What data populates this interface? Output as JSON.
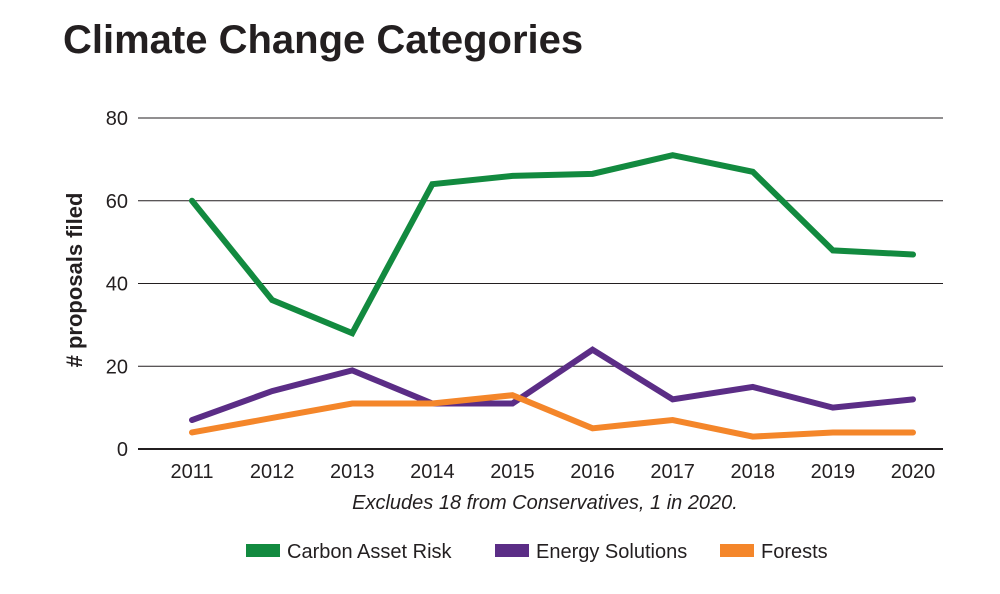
{
  "chart_data": {
    "type": "line",
    "title": "Climate Change Categories",
    "ylabel": "# proposals filed",
    "xlabel": "",
    "note": "Excludes 18 from Conservatives, 1 in 2020.",
    "x": [
      "2011",
      "2012",
      "2013",
      "2014",
      "2015",
      "2016",
      "2017",
      "2018",
      "2019",
      "2020"
    ],
    "ylim": [
      0,
      80
    ],
    "yticks": [
      0,
      20,
      40,
      60,
      80
    ],
    "grid": true,
    "legend_position": "bottom",
    "series": [
      {
        "name": "Carbon Asset Risk",
        "color": "#128a3f",
        "values": [
          60,
          36,
          28,
          64,
          66,
          66.5,
          71,
          67,
          48,
          47
        ]
      },
      {
        "name": "Energy Solutions",
        "color": "#5b2d86",
        "values": [
          7,
          14,
          19,
          11,
          11,
          24,
          12,
          15,
          10,
          12
        ]
      },
      {
        "name": "Forests",
        "color": "#f4862a",
        "values": [
          4,
          7.5,
          11,
          11,
          13,
          5,
          7,
          3,
          4,
          4
        ]
      }
    ]
  }
}
